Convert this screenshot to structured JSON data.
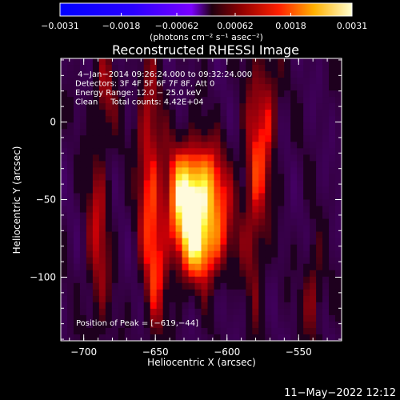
{
  "chart_data": {
    "type": "heatmap",
    "title": "Reconstructed RHESSI Image",
    "xlabel": "Heliocentric X (arcsec)",
    "ylabel": "Heliocentric Y (arcsec)",
    "xlim": [
      -716,
      -520
    ],
    "ylim": [
      -141,
      41
    ],
    "x_ticks": [
      {
        "v": -700,
        "label": "−700"
      },
      {
        "v": -650,
        "label": "−650"
      },
      {
        "v": -600,
        "label": "−600"
      },
      {
        "v": -550,
        "label": "−550"
      }
    ],
    "y_ticks": [
      {
        "v": 0,
        "label": "0"
      },
      {
        "v": -50,
        "label": "−50"
      },
      {
        "v": -100,
        "label": "−100"
      }
    ],
    "colorbar": {
      "range": [
        -0.0031,
        0.0031
      ],
      "ticks": [
        "−0.0031",
        "−0.0018",
        "−0.00062",
        "0.00062",
        "0.0018",
        "0.0031"
      ],
      "unit_label": "(photons cm⁻² s⁻¹ asec⁻²)"
    },
    "info_lines": [
      " 4−Jan−2014 09:26:24.000 to 09:32:24.000",
      "Detectors: 3F 4F 5F 6F 7F 8F, Att 0",
      "Energy Range: 12.0 − 25.0 keV",
      "Clean     Total counts: 4.42E+04"
    ],
    "peak_text": "Position of Peak = [−619,−44]",
    "peak": {
      "x": -619,
      "y": -44
    },
    "sources": [
      {
        "x": -619,
        "y": -44,
        "sx": 14,
        "sy": 22,
        "amp": 1.0
      },
      {
        "x": -615,
        "y": -80,
        "sx": 12,
        "sy": 18,
        "amp": 0.75
      },
      {
        "x": -630,
        "y": -60,
        "sx": 9,
        "sy": 30,
        "amp": 0.55
      },
      {
        "x": -655,
        "y": -20,
        "sx": 6,
        "sy": 45,
        "amp": 0.6
      },
      {
        "x": -650,
        "y": -95,
        "sx": 6,
        "sy": 35,
        "amp": 0.5
      },
      {
        "x": -580,
        "y": -40,
        "sx": 6,
        "sy": 55,
        "amp": 0.6
      },
      {
        "x": -570,
        "y": 10,
        "sx": 5,
        "sy": 30,
        "amp": 0.45
      },
      {
        "x": -690,
        "y": -75,
        "sx": 6,
        "sy": 50,
        "amp": 0.5
      },
      {
        "x": -540,
        "y": -110,
        "sx": 5,
        "sy": 25,
        "amp": 0.45
      },
      {
        "x": -685,
        "y": 20,
        "sx": 6,
        "sy": 20,
        "amp": 0.35
      }
    ]
  },
  "footer": {
    "timestamp": "11−May−2022 12:12"
  },
  "colors": {
    "background": "#000000",
    "text": "#ffffff"
  }
}
